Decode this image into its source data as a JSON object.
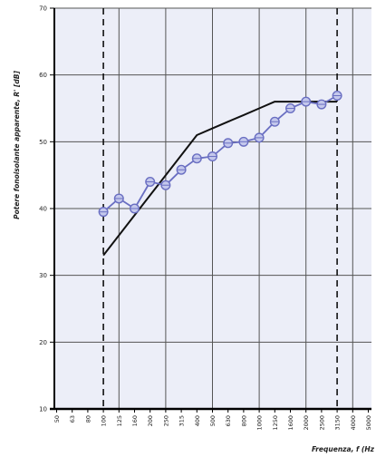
{
  "chart_data": {
    "type": "line",
    "title": "",
    "ylabel": "Potere fonoisolante apparente, R' [dB]",
    "xlabel": "Frequenza, f (Hz",
    "ylim": [
      10,
      70
    ],
    "yticks": [
      10,
      20,
      30,
      40,
      50,
      60,
      70
    ],
    "categories": [
      "50",
      "63",
      "80",
      "100",
      "125",
      "160",
      "200",
      "250",
      "315",
      "400",
      "500",
      "630",
      "800",
      "1000",
      "1250",
      "1600",
      "2000",
      "2500",
      "3150",
      "4000",
      "5000"
    ],
    "grid": true,
    "dashed_verticals": [
      "100",
      "3150"
    ],
    "series": [
      {
        "name": "",
        "style": "measured",
        "color": "#6a6fc2",
        "x": [
          "100",
          "125",
          "160",
          "200",
          "250",
          "315",
          "400",
          "500",
          "630",
          "800",
          "1000",
          "1250",
          "1600",
          "2000",
          "2500",
          "3150"
        ],
        "values": [
          39.5,
          41.5,
          40,
          44,
          43.5,
          45.8,
          47.5,
          47.8,
          49.8,
          50,
          50.6,
          53,
          55,
          56,
          55.6,
          56.9
        ]
      },
      {
        "name": "",
        "style": "reference",
        "color": "#111111",
        "x": [
          "100",
          "125",
          "160",
          "200",
          "250",
          "315",
          "400",
          "500",
          "630",
          "800",
          "1000",
          "1250",
          "1600",
          "2000",
          "2500",
          "3150"
        ],
        "values": [
          33,
          36,
          39,
          42,
          45,
          48,
          51,
          52,
          53,
          54,
          55,
          56,
          56,
          56,
          56,
          56
        ]
      }
    ]
  },
  "colors": {
    "plot_background": "#eceef8",
    "grid": "#555555",
    "measured": "#6a6fc2",
    "reference": "#111111"
  }
}
